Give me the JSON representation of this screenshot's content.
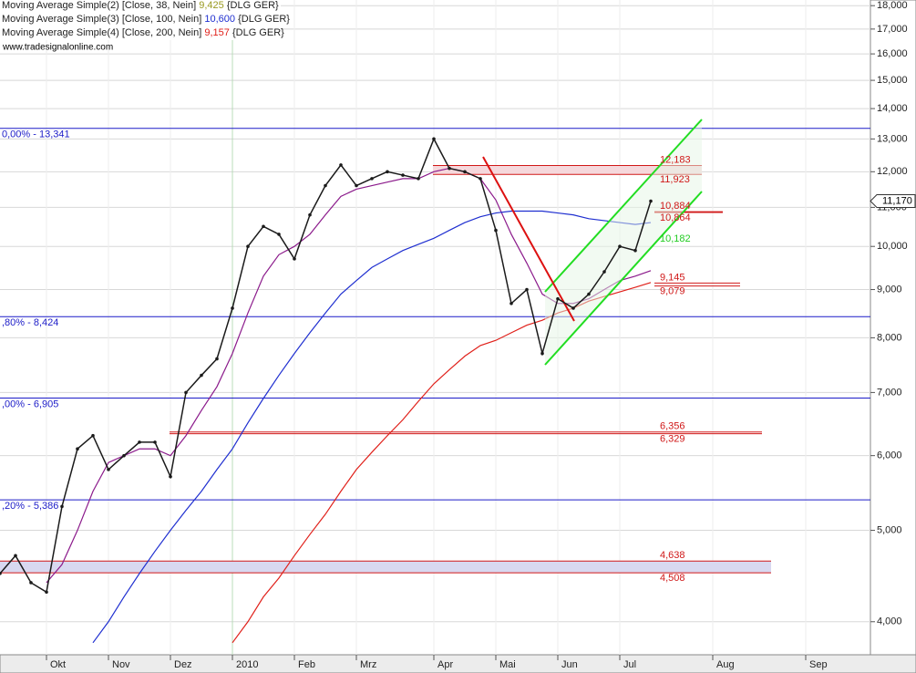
{
  "chart_data": {
    "type": "line",
    "instrument": "{DLG GER}",
    "watermark": "www.tradesignalonline.com",
    "last_price": {
      "value": 11170,
      "label": "11,170"
    },
    "log_scale": true,
    "grid": true,
    "ylim": [
      3690,
      18250
    ],
    "yticks": [
      {
        "value": 4000,
        "label": "4,000"
      },
      {
        "value": 5000,
        "label": "5,000"
      },
      {
        "value": 6000,
        "label": "6,000"
      },
      {
        "value": 7000,
        "label": "7,000"
      },
      {
        "value": 8000,
        "label": "8,000"
      },
      {
        "value": 9000,
        "label": "9,000"
      },
      {
        "value": 10000,
        "label": "10,000"
      },
      {
        "value": 11000,
        "label": "11,000"
      },
      {
        "value": 12000,
        "label": "12,000"
      },
      {
        "value": 13000,
        "label": "13,000"
      },
      {
        "value": 14000,
        "label": "14,000"
      },
      {
        "value": 15000,
        "label": "15,000"
      },
      {
        "value": 16000,
        "label": "16,000"
      },
      {
        "value": 17000,
        "label": "17,000"
      },
      {
        "value": 18000,
        "label": "18,000"
      }
    ],
    "categories": [
      null,
      null,
      null,
      "Okt",
      null,
      null,
      null,
      "Nov",
      null,
      null,
      null,
      "Dez",
      null,
      null,
      null,
      "2010",
      null,
      null,
      null,
      "Feb",
      null,
      null,
      null,
      "Mrz",
      null,
      null,
      null,
      null,
      "Apr",
      null,
      null,
      null,
      "Mai",
      null,
      null,
      null,
      "Jun",
      null,
      null,
      null,
      "Jul",
      null,
      null,
      null,
      null,
      null,
      "Aug",
      null,
      null,
      null,
      null,
      null,
      "Sep",
      null,
      null
    ],
    "series": [
      {
        "color": "#1a1a1a",
        "values": [
          4500,
          4700,
          4400,
          4300,
          5300,
          6100,
          6300,
          5800,
          6000,
          6200,
          6200,
          5700,
          7000,
          7300,
          7600,
          8600,
          10000,
          10500,
          10300,
          9700,
          10800,
          11600,
          12200,
          11600,
          11800,
          12000,
          11900,
          11800,
          13000,
          12100,
          12000,
          11800,
          10400,
          8700,
          9000,
          7700,
          8800,
          8600,
          8900,
          9400,
          10000,
          9900,
          11170,
          null,
          null,
          null,
          null,
          null,
          null,
          null,
          null,
          null,
          null,
          null,
          null
        ]
      },
      {
        "name": "Moving Average Simple(2) [Close, 38, Nein]",
        "legend_value": "9,425",
        "color": "#8b1a8b",
        "values": [
          null,
          null,
          null,
          4400,
          4600,
          5000,
          5500,
          5900,
          6000,
          6100,
          6100,
          6000,
          6300,
          6700,
          7100,
          7700,
          8500,
          9300,
          9800,
          10000,
          10300,
          10800,
          11300,
          11500,
          11600,
          11700,
          11800,
          11800,
          12000,
          12100,
          12000,
          11800,
          11200,
          10300,
          9600,
          8900,
          8700,
          8700,
          8800,
          9000,
          9200,
          9300,
          9425,
          null,
          null,
          null,
          null,
          null,
          null,
          null,
          null,
          null,
          null,
          null,
          null
        ]
      },
      {
        "name": "Moving Average Simple(3) [Close, 100, Nein]",
        "legend_value": "10,600",
        "color": "#1f2fd0",
        "values": [
          null,
          null,
          null,
          null,
          null,
          null,
          3800,
          4000,
          4250,
          4500,
          4750,
          5000,
          5250,
          5500,
          5800,
          6100,
          6500,
          6900,
          7300,
          7700,
          8100,
          8500,
          8900,
          9200,
          9500,
          9700,
          9900,
          10050,
          10200,
          10400,
          10600,
          10750,
          10850,
          10900,
          10900,
          10900,
          10850,
          10800,
          10700,
          10650,
          10600,
          10550,
          10600,
          null,
          null,
          null,
          null,
          null,
          null,
          null,
          null,
          null,
          null,
          null,
          null
        ]
      },
      {
        "name": "Moving Average Simple(4) [Close, 200, Nein]",
        "legend_value": "9,157",
        "color": "#e0201a",
        "values": [
          null,
          null,
          null,
          null,
          null,
          null,
          null,
          null,
          null,
          null,
          null,
          null,
          null,
          null,
          null,
          3800,
          4000,
          4250,
          4450,
          4700,
          4950,
          5200,
          5500,
          5800,
          6050,
          6300,
          6550,
          6850,
          7150,
          7400,
          7650,
          7850,
          7950,
          8100,
          8250,
          8350,
          8500,
          8600,
          8750,
          8850,
          8950,
          9050,
          9157,
          null,
          null,
          null,
          null,
          null,
          null,
          null,
          null,
          null,
          null,
          null,
          null
        ]
      }
    ],
    "fib_levels": [
      {
        "value": 13341,
        "label": "0,00% - 13,341"
      },
      {
        "value": 8424,
        "label": ",80% - 8,424"
      },
      {
        "value": 6905,
        "label": ",00% - 6,905"
      },
      {
        "value": 5386,
        "label": ",20% - 5,386"
      }
    ],
    "price_levels": [
      {
        "value": 12183,
        "label": "12,183"
      },
      {
        "value": 11923,
        "label": "11,923"
      },
      {
        "value": 10884,
        "label": "10,884"
      },
      {
        "value": 10864,
        "label": "10,864"
      },
      {
        "value": 9145,
        "label": "9,145"
      },
      {
        "value": 9079,
        "label": "9,079"
      },
      {
        "value": 6356,
        "label": "6,356"
      },
      {
        "value": 6329,
        "label": "6,329"
      },
      {
        "value": 4638,
        "label": "4,638"
      },
      {
        "value": 4508,
        "label": "4,508"
      }
    ],
    "channel_label": {
      "value": 10182,
      "label": "10,182"
    }
  }
}
